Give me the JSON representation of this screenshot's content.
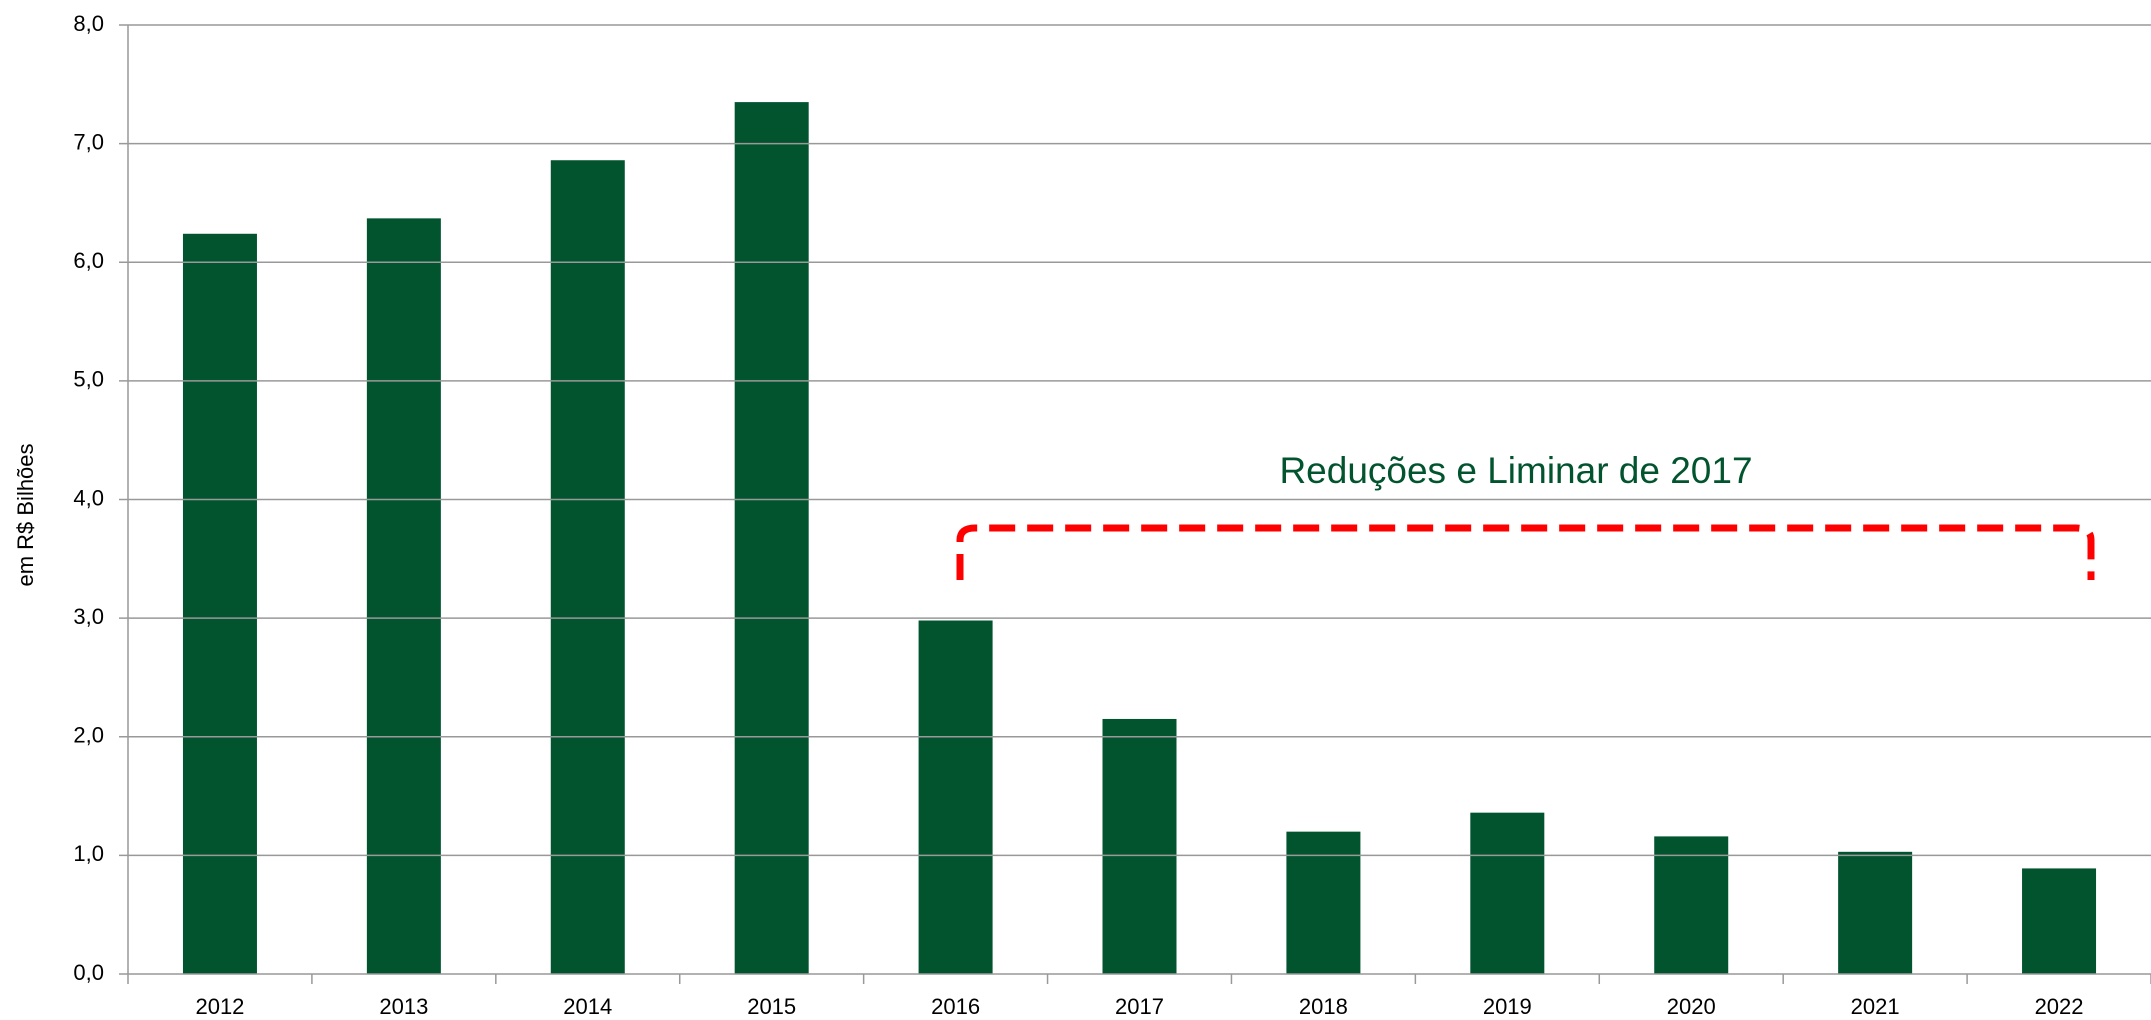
{
  "chart_data": {
    "type": "bar",
    "y_label": "em R$ Bilhões",
    "annotation": "Reduções e Liminar de 2017",
    "categories": [
      "2012",
      "2013",
      "2014",
      "2015",
      "2016",
      "2017",
      "2018",
      "2019",
      "2020",
      "2021",
      "2022"
    ],
    "values": [
      6.24,
      6.37,
      6.86,
      7.35,
      2.98,
      2.15,
      1.2,
      1.36,
      1.16,
      1.03,
      0.89
    ],
    "color": "#01542e",
    "ylim": [
      0,
      8
    ],
    "yticks": [
      {
        "value": 0,
        "label": "0,0"
      },
      {
        "value": 1,
        "label": "1,0"
      },
      {
        "value": 2,
        "label": "2,0"
      },
      {
        "value": 3,
        "label": "3,0"
      },
      {
        "value": 4,
        "label": "4,0"
      },
      {
        "value": 5,
        "label": "5,0"
      },
      {
        "value": 6,
        "label": "6,0"
      },
      {
        "value": 7,
        "label": "7,0"
      },
      {
        "value": 8,
        "label": "8,0"
      }
    ],
    "grid": true
  }
}
